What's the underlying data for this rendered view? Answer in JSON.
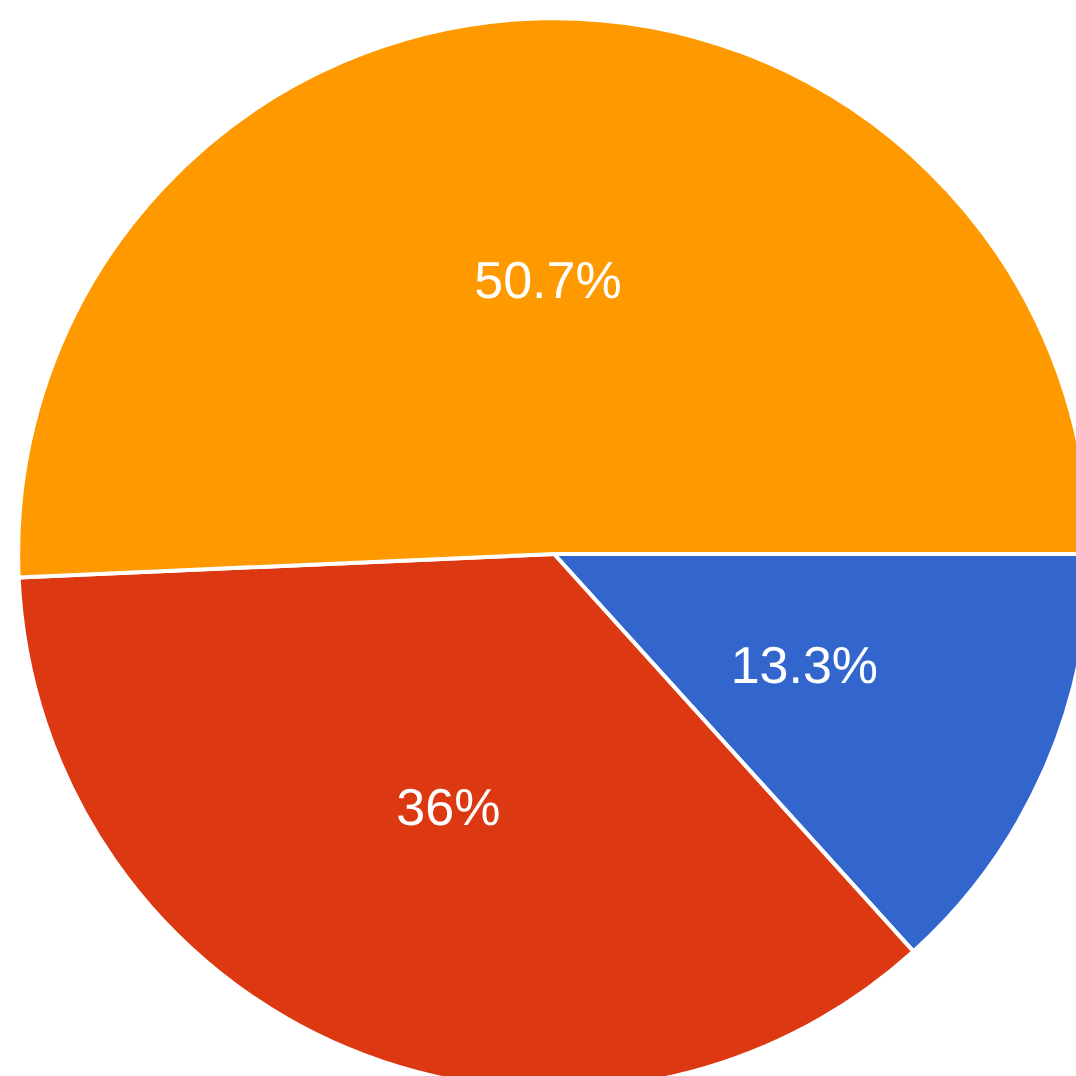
{
  "chart_data": {
    "type": "pie",
    "categories": [
      null,
      null,
      null
    ],
    "values": [
      13.3,
      36,
      50.7
    ],
    "colors": [
      "#3366cc",
      "#dc3912",
      "#ff9900"
    ],
    "value_labels": [
      "13.3%",
      "36%",
      "50.7%"
    ]
  }
}
